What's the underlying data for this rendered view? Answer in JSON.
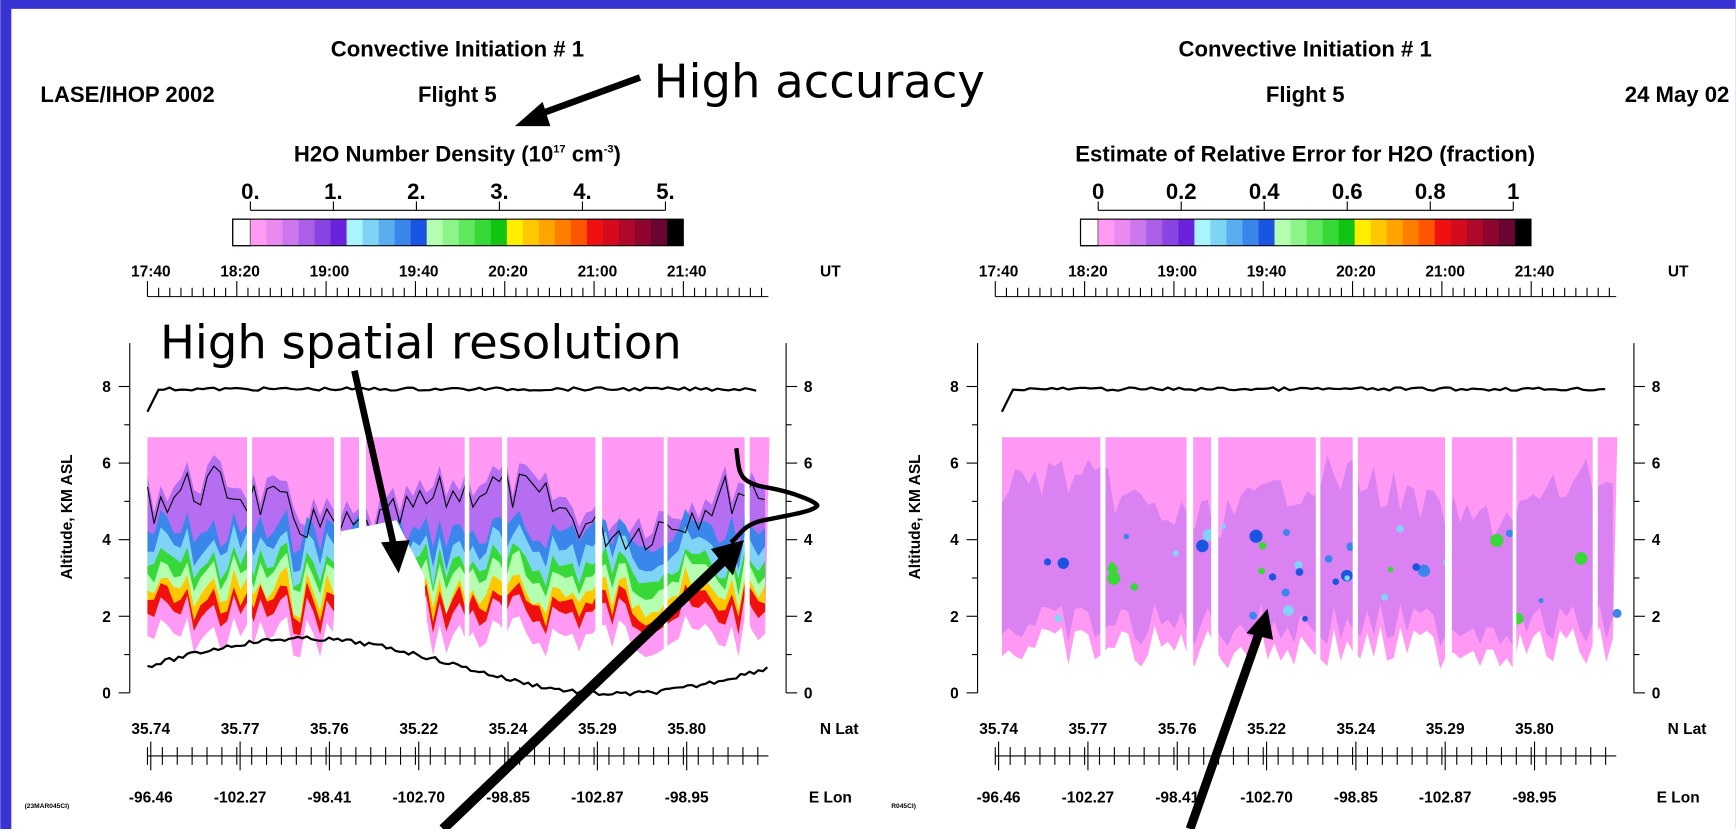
{
  "header": {
    "project": "LASE/IHOP 2002",
    "date": "24 May 02"
  },
  "panels": [
    {
      "title": "Convective Initiation # 1",
      "subtitle": "Flight 5",
      "colorbar_label": [
        {
          "text": "H2O Number Density (10"
        },
        {
          "text": "17",
          "superscript": true
        },
        {
          "text": " cm"
        },
        {
          "text": "-3",
          "superscript": true
        },
        {
          "text": ")"
        }
      ],
      "colorbar_ticks": [
        "0.",
        "1.",
        "2.",
        "3.",
        "4.",
        "5."
      ],
      "time_ticks": [
        "17:40",
        "18:20",
        "19:00",
        "19:40",
        "20:20",
        "21:00",
        "21:40"
      ],
      "time_unit": "UT",
      "alt_label": "Altitude, KM ASL",
      "alt_ticks": [
        "0",
        "2",
        "4",
        "6",
        "8"
      ],
      "lat_ticks": [
        "35.74",
        "35.77",
        "35.76",
        "35.22",
        "35.24",
        "35.29",
        "35.80"
      ],
      "lat_unit": "N Lat",
      "lon_ticks": [
        "-96.46",
        "-102.27",
        "-98.41",
        "-102.70",
        "-98.85",
        "-102.87",
        "-98.95"
      ],
      "lon_unit": "E Lon",
      "stamp": "(23MAR045CI)"
    },
    {
      "title": "Convective Initiation # 1",
      "subtitle": "Flight 5",
      "colorbar_label": [
        {
          "text": "Estimate of Relative Error for H2O  (fraction)"
        }
      ],
      "colorbar_ticks": [
        "0",
        "0.2",
        "0.4",
        "0.6",
        "0.8",
        "1"
      ],
      "time_ticks": [
        "17:40",
        "18:20",
        "19:00",
        "19:40",
        "20:20",
        "21:00",
        "21:40"
      ],
      "time_unit": "UT",
      "alt_label": "Altitude, KM ASL",
      "alt_ticks": [
        "0",
        "2",
        "4",
        "6",
        "8"
      ],
      "lat_ticks": [
        "35.74",
        "35.77",
        "35.76",
        "35.22",
        "35.24",
        "35.29",
        "35.80"
      ],
      "lat_unit": "N Lat",
      "lon_ticks": [
        "-96.46",
        "-102.27",
        "-98.41",
        "-102.70",
        "-98.85",
        "-102.87",
        "-98.95"
      ],
      "lon_unit": "E Lon",
      "stamp": "R045CI)"
    }
  ],
  "annotations": {
    "accuracy": "High accuracy",
    "resolution": "High spatial resolution"
  }
}
